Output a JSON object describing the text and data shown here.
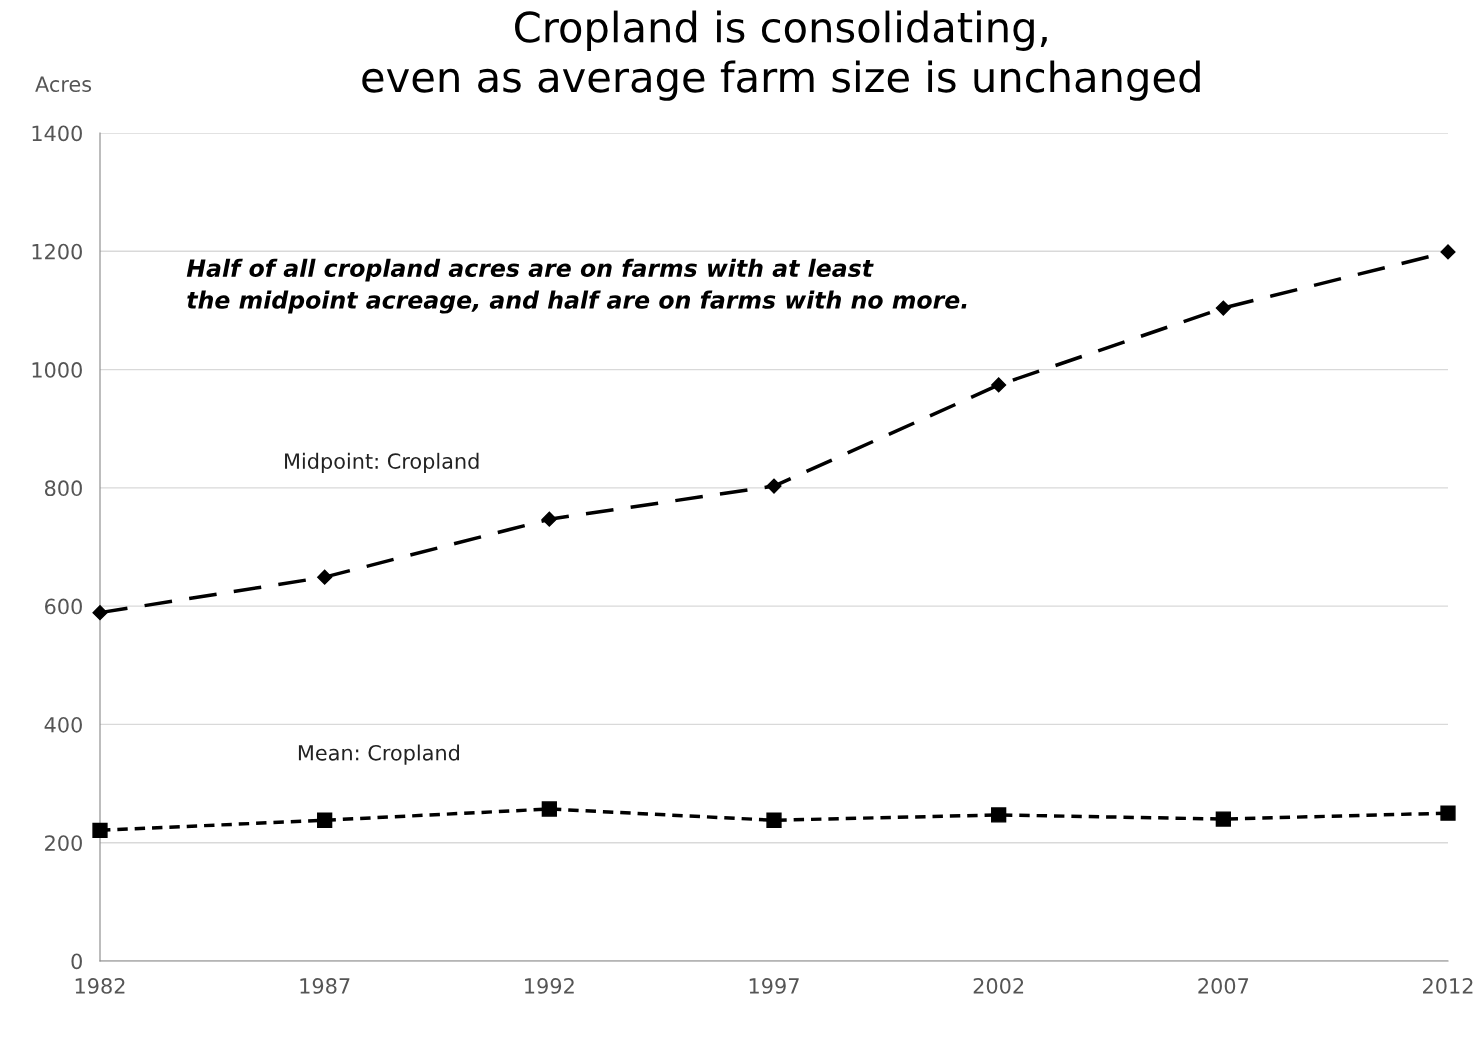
{
  "chart_data": {
    "type": "line",
    "title": "Cropland is consolidating,\neven as average farm size is unchanged",
    "ylabel": "Acres",
    "x": [
      1982,
      1987,
      1992,
      1997,
      2002,
      2007,
      2012
    ],
    "series": [
      {
        "name": "Midpoint: Cropland",
        "color": "#000000",
        "values": [
          589,
          649,
          747,
          803,
          974,
          1104,
          1199
        ],
        "marker": "diamond",
        "line_style": "dashed"
      },
      {
        "name": "Mean: Cropland",
        "color": "#000000",
        "values": [
          221,
          238,
          257,
          238,
          247,
          240,
          250
        ],
        "marker": "square",
        "line_style": "dotted"
      }
    ],
    "xlim": [
      1982,
      2012
    ],
    "xticks": [
      1982,
      1987,
      1992,
      1997,
      2002,
      2007,
      2012
    ],
    "ylim": [
      0,
      1400
    ],
    "yticks": [
      0,
      200,
      400,
      600,
      800,
      1000,
      1200,
      1400
    ],
    "grid": "y",
    "legend": false,
    "annotations": [
      "Half of all cropland acres are on farms with at least\nthe midpoint acreage, and half are on farms with no more."
    ]
  }
}
